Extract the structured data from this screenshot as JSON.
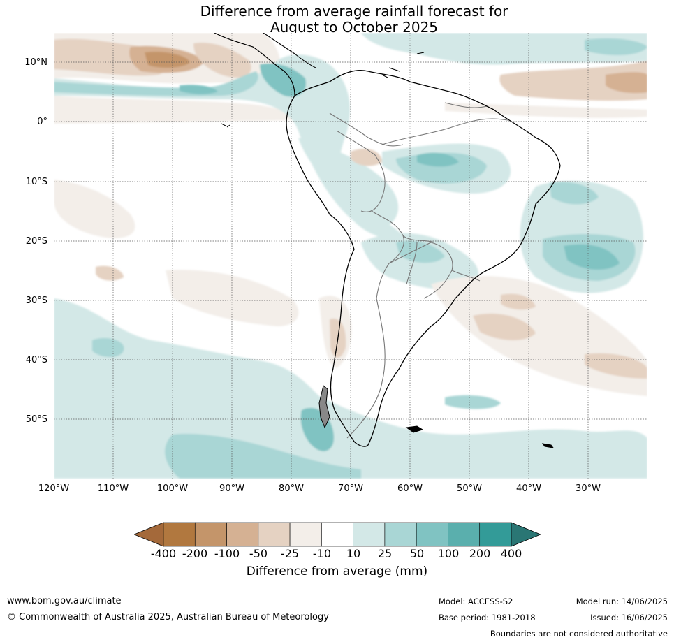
{
  "title": {
    "line1": "Difference from average rainfall forecast for",
    "line2": "August to October 2025"
  },
  "map": {
    "latitude_labels": [
      "10°N",
      "0°",
      "10°S",
      "20°S",
      "30°S",
      "40°S",
      "50°S"
    ],
    "longitude_labels": [
      "120°W",
      "110°W",
      "100°W",
      "90°W",
      "80°W",
      "70°W",
      "60°W",
      "50°W",
      "40°W",
      "30°W"
    ],
    "colors": {
      "dry_strong": "#b1783f",
      "dry_medium": "#c4956a",
      "dry_light": "#d5b193",
      "dry_faint": "#e5d2c2",
      "dry_trace": "#f3eee9",
      "neutral": "#ffffff",
      "wet_trace": "#d3e8e7",
      "wet_light": "#a9d6d5",
      "wet_medium": "#80c3c2",
      "wet_strong": "#5aafad",
      "wet_heavy": "#339b98",
      "wet_extreme": "#2a7674",
      "coastline": "#000000",
      "borders": "#777777"
    }
  },
  "colorbar": {
    "ticks": [
      "-400",
      "-200",
      "-100",
      "-50",
      "-25",
      "-10",
      "10",
      "25",
      "50",
      "100",
      "200",
      "400"
    ],
    "label": "Difference from average (mm)",
    "colors": [
      "#a4693a",
      "#b1783f",
      "#c4956a",
      "#d5b193",
      "#e5d2c2",
      "#f3eee9",
      "#ffffff",
      "#d3e8e7",
      "#a9d6d5",
      "#80c3c2",
      "#5aafad",
      "#339b98",
      "#2a7674"
    ]
  },
  "footer": {
    "website": "www.bom.gov.au/climate",
    "copyright": "© Commonwealth of Australia 2025, Australian Bureau of Meteorology",
    "model": "Model: ACCESS-S2",
    "base_period": "Base period: 1981-2018",
    "model_run": "Model run: 14/06/2025",
    "issued": "Issued: 16/06/2025",
    "disclaimer": "Boundaries are not considered authoritative"
  }
}
